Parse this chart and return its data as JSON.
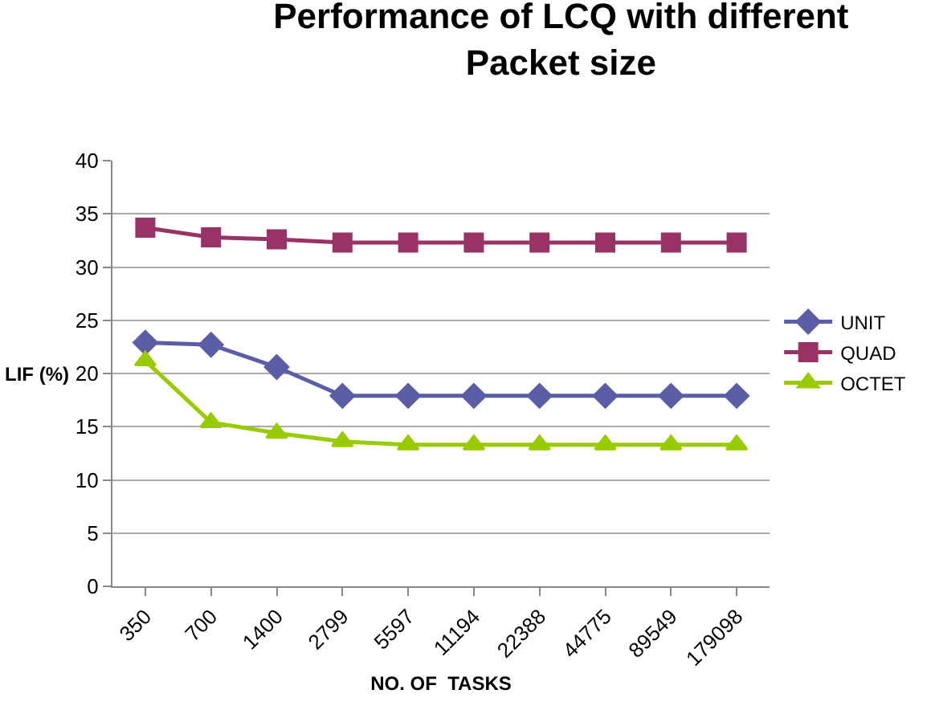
{
  "chart_data": {
    "type": "line",
    "title": "Performance of LCQ with different Packet size",
    "xlabel": "NO. OF  TASKS",
    "ylabel": "LIF (%)",
    "categories": [
      "350",
      "700",
      "1400",
      "2799",
      "5597",
      "11194",
      "22388",
      "44775",
      "89549",
      "179098"
    ],
    "series": [
      {
        "name": "UNIT",
        "color": "#5b5ea6",
        "marker": "diamond",
        "values": [
          22.9,
          22.7,
          20.6,
          17.9,
          17.9,
          17.9,
          17.9,
          17.9,
          17.9,
          17.9
        ]
      },
      {
        "name": "QUAD",
        "color": "#993366",
        "marker": "square",
        "values": [
          33.7,
          32.8,
          32.6,
          32.3,
          32.3,
          32.3,
          32.3,
          32.3,
          32.3,
          32.3
        ]
      },
      {
        "name": "OCTET",
        "color": "#99cc00",
        "marker": "triangle",
        "values": [
          21.2,
          15.4,
          14.4,
          13.6,
          13.3,
          13.3,
          13.3,
          13.3,
          13.3,
          13.3
        ]
      }
    ],
    "ylim": [
      0,
      40
    ],
    "yticks": [
      0,
      5,
      10,
      15,
      20,
      25,
      30,
      35,
      40
    ],
    "grid": "y",
    "legend": "right"
  }
}
